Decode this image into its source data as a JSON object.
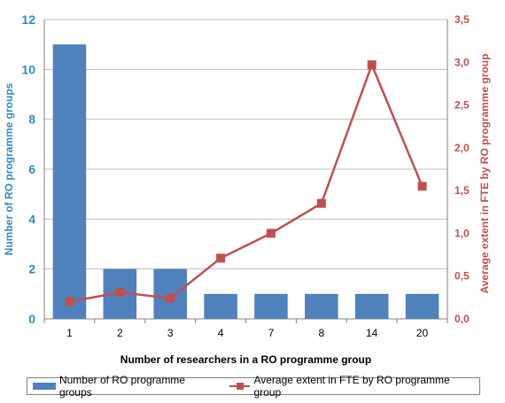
{
  "chart_data": {
    "type": "bar",
    "categories": [
      "1",
      "2",
      "3",
      "4",
      "7",
      "8",
      "14",
      "20"
    ],
    "xlabel": "Number of researchers in a RO programme group",
    "ylabel": "Number of RO programme groups",
    "y2label": "Average extent in FTE by RO programme group",
    "ylim": [
      0,
      12
    ],
    "yticks": [
      "0",
      "2",
      "4",
      "6",
      "8",
      "10",
      "12"
    ],
    "y2lim": [
      0,
      3.5
    ],
    "y2ticks": [
      "0,0",
      "0,5",
      "1,0",
      "1,5",
      "2,0",
      "2,5",
      "3,0",
      "3,5"
    ],
    "grid": true,
    "legend_position": "bottom",
    "series": [
      {
        "name": "Number of RO programme groups",
        "kind": "bar",
        "axis": "left",
        "color": "#4f81bd",
        "values": [
          11,
          2,
          2,
          1,
          1,
          1,
          1,
          1
        ]
      },
      {
        "name": "Average extent in FTE by RO programme group",
        "kind": "line",
        "axis": "right",
        "color": "#c0504d",
        "values": [
          0.2,
          0.31,
          0.24,
          0.71,
          1.0,
          1.35,
          2.97,
          1.55
        ]
      }
    ],
    "left_axis_color": "#2e8bc9",
    "right_axis_color": "#c0504d"
  }
}
